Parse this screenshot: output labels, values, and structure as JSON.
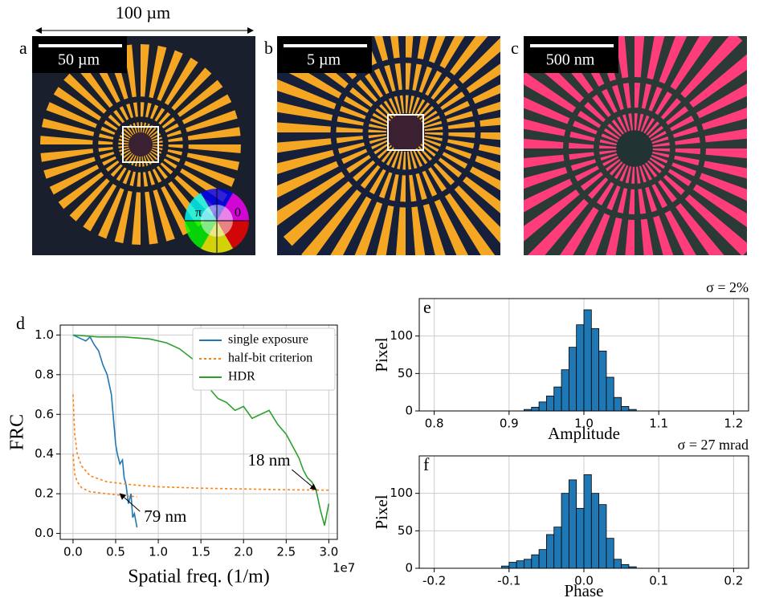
{
  "figure": {
    "width_label": "100 µm",
    "panels": [
      {
        "label": "a",
        "scale_bar": "50 µm"
      },
      {
        "label": "b",
        "scale_bar": "5 µm"
      },
      {
        "label": "c",
        "scale_bar": "500 nm"
      }
    ],
    "phase_wheel": [
      "π",
      "0"
    ]
  },
  "chart_data": [
    {
      "type": "line",
      "panel_label": "d",
      "x_label": "Spatial freq. (1/m)",
      "y_label": "FRC",
      "x_offset_label": "1e7",
      "xlim": [
        -0.15,
        3.1
      ],
      "ylim": [
        -0.03,
        1.05
      ],
      "xticks": [
        {
          "value": 0,
          "label": "0.0"
        },
        0.5,
        {
          "value": 1,
          "label": "1.0"
        },
        1.5,
        {
          "value": 2,
          "label": "2.0"
        },
        2.5,
        {
          "value": 3,
          "label": "3.0"
        }
      ],
      "yticks": [
        {
          "value": 0,
          "label": "0.0"
        },
        0.2,
        0.4,
        0.6,
        0.8,
        {
          "value": 1,
          "label": "1.0"
        }
      ],
      "grid": true,
      "legend": "upper right",
      "series": [
        {
          "name": "single exposure",
          "color": "#1f77b4",
          "dashed": false,
          "x": [
            0,
            0.05,
            0.1,
            0.15,
            0.2,
            0.25,
            0.3,
            0.35,
            0.4,
            0.45,
            0.48,
            0.5,
            0.52,
            0.55,
            0.58,
            0.6,
            0.62,
            0.65,
            0.68,
            0.7,
            0.72,
            0.75
          ],
          "values": [
            1.0,
            0.99,
            0.98,
            0.97,
            0.99,
            0.95,
            0.92,
            0.85,
            0.8,
            0.7,
            0.55,
            0.45,
            0.4,
            0.35,
            0.37,
            0.28,
            0.25,
            0.15,
            0.2,
            0.08,
            0.1,
            0.03
          ]
        },
        {
          "name": "half-bit criterion",
          "color": "#ff7f0e",
          "dashed": true,
          "x": [
            0,
            0.02,
            0.05,
            0.1,
            0.2,
            0.4,
            0.7,
            1.0,
            1.5,
            2.0,
            2.5,
            3.0
          ],
          "values": [
            0.7,
            0.5,
            0.4,
            0.34,
            0.29,
            0.26,
            0.245,
            0.235,
            0.228,
            0.224,
            0.22,
            0.218
          ]
        },
        {
          "color": "#ff7f0e",
          "dashed": true,
          "x": [
            0,
            0.02,
            0.05,
            0.1,
            0.2,
            0.4,
            0.6,
            0.75
          ],
          "values": [
            0.4,
            0.3,
            0.26,
            0.23,
            0.21,
            0.2,
            0.19,
            0.185
          ]
        },
        {
          "name": "HDR",
          "color": "#2ca02c",
          "dashed": false,
          "x": [
            0,
            0.3,
            0.6,
            0.9,
            1.1,
            1.25,
            1.4,
            1.5,
            1.6,
            1.7,
            1.8,
            1.9,
            2.0,
            2.1,
            2.2,
            2.3,
            2.4,
            2.5,
            2.6,
            2.65,
            2.7,
            2.75,
            2.8,
            2.85,
            2.9,
            2.95,
            3.0
          ],
          "values": [
            1.0,
            0.99,
            0.99,
            0.98,
            0.96,
            0.93,
            0.88,
            0.82,
            0.73,
            0.68,
            0.66,
            0.62,
            0.64,
            0.58,
            0.6,
            0.62,
            0.55,
            0.5,
            0.42,
            0.38,
            0.32,
            0.28,
            0.26,
            0.22,
            0.12,
            0.04,
            0.15
          ]
        }
      ],
      "annotations": [
        {
          "text": "79 nm",
          "x": 0.55,
          "y": 0.2
        },
        {
          "text": "18 nm",
          "x": 2.85,
          "y": 0.22
        }
      ]
    },
    {
      "type": "histogram",
      "panel_label": "e",
      "annotation": "σ = 2%",
      "x_label": "Amplitude",
      "y_label": "Pixel",
      "color": "#1f77b4",
      "bins": [
        0.92,
        0.93,
        0.94,
        0.95,
        0.96,
        0.97,
        0.98,
        0.99,
        1.0,
        1.01,
        1.02,
        1.03,
        1.04,
        1.05,
        1.06,
        1.07
      ],
      "values": [
        2,
        5,
        12,
        20,
        32,
        55,
        85,
        115,
        135,
        110,
        80,
        45,
        18,
        6,
        2
      ],
      "xlim": [
        0.78,
        1.22
      ],
      "ylim": [
        0,
        150
      ],
      "xticks": [
        0.8,
        0.9,
        {
          "value": 1,
          "label": "1.0"
        },
        1.1,
        1.2
      ],
      "yticks": [
        0,
        50,
        100
      ],
      "grid": true
    },
    {
      "type": "histogram",
      "panel_label": "f",
      "annotation": "σ = 27 mrad",
      "x_label": "Phase",
      "y_label": "Pixel",
      "color": "#1f77b4",
      "bins": [
        -0.11,
        -0.1,
        -0.09,
        -0.08,
        -0.07,
        -0.06,
        -0.05,
        -0.04,
        -0.03,
        -0.02,
        -0.01,
        0.0,
        0.01,
        0.02,
        0.03,
        0.04,
        0.05,
        0.06,
        0.07
      ],
      "values": [
        3,
        8,
        10,
        12,
        18,
        25,
        45,
        55,
        100,
        118,
        80,
        125,
        100,
        85,
        40,
        12,
        5,
        2
      ],
      "xlim": [
        -0.22,
        0.22
      ],
      "ylim": [
        0,
        150
      ],
      "xticks": [
        -0.2,
        -0.1,
        {
          "value": 0,
          "label": "0.0"
        },
        0.1,
        0.2
      ],
      "yticks": [
        0,
        50,
        100
      ],
      "grid": true
    }
  ]
}
